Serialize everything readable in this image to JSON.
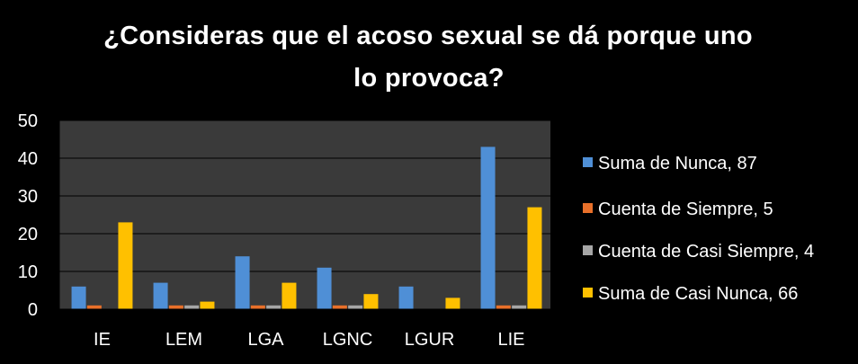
{
  "chart_data": {
    "type": "bar",
    "title": "¿Consideras que el acoso sexual se dá porque uno lo provoca?",
    "title_lines": [
      "¿Consideras que el acoso sexual se dá porque uno",
      "lo provoca?"
    ],
    "categories": [
      "IE",
      "LEM",
      "LGA",
      "LGNC",
      "LGUR",
      "LIE"
    ],
    "series": [
      {
        "name": "Suma de Nunca, 87",
        "color": "#4f8fd6",
        "values": [
          6,
          7,
          14,
          11,
          6,
          43
        ]
      },
      {
        "name": "Cuenta de Siempre, 5",
        "color": "#e8702a",
        "values": [
          1,
          1,
          1,
          1,
          0,
          1
        ]
      },
      {
        "name": "Cuenta de Casi Siempre, 4",
        "color": "#a6a6a6",
        "values": [
          0,
          1,
          1,
          1,
          0,
          1
        ]
      },
      {
        "name": "Suma de Casi Nunca, 66",
        "color": "#ffc000",
        "values": [
          23,
          2,
          7,
          4,
          3,
          27
        ]
      }
    ],
    "ylim": [
      0,
      50
    ],
    "yticks": [
      "0",
      "10",
      "20",
      "30",
      "40",
      "50"
    ],
    "xlabel": "",
    "ylabel": "",
    "grid": true,
    "legend_position": "right",
    "plot_background": "#3a3a3a"
  }
}
